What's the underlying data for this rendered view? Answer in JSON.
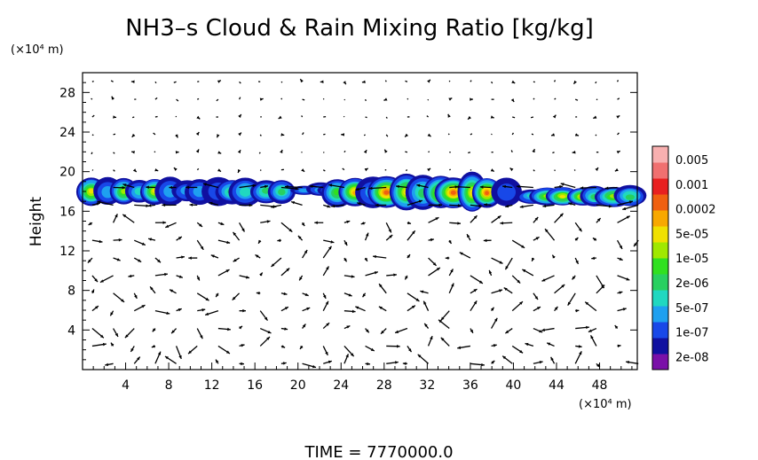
{
  "chart_data": {
    "type": "heatmap",
    "title": "NH3–s Cloud & Rain Mixing Ratio [kg/kg]",
    "y_units": "(×10⁴ m)",
    "x_units": "(×10⁴ m)",
    "ylabel": "Height",
    "xlabel": "",
    "footer": "TIME  =  7770000.0",
    "xlim": [
      0,
      51.5
    ],
    "ylim": [
      0,
      30
    ],
    "xticks": [
      4,
      8,
      12,
      16,
      20,
      24,
      28,
      32,
      36,
      40,
      44,
      48
    ],
    "yticks": [
      4,
      8,
      12,
      16,
      20,
      24,
      28
    ],
    "grid": false,
    "colorbar": {
      "labels": [
        "0.005",
        "0.001",
        "0.0002",
        "5e-05",
        "1e-05",
        "2e-06",
        "5e-07",
        "1e-07",
        "2e-08"
      ],
      "colors": [
        "#7a10a8",
        "#1010a0",
        "#1848e8",
        "#1ea0f0",
        "#20d8c0",
        "#28d060",
        "#30e020",
        "#a0e800",
        "#f0e000",
        "#f8a800",
        "#f06010",
        "#e82020",
        "#f07070",
        "#f8b0b0"
      ]
    },
    "cloud_layers": [
      {
        "name": "layer-west",
        "x": [
          0,
          19
        ],
        "y": [
          16.5,
          19.5
        ],
        "peak": "5e-05"
      },
      {
        "name": "layer-mid",
        "x": [
          20,
          25
        ],
        "y": [
          17.5,
          18.8
        ],
        "peak": "1e-05"
      },
      {
        "name": "layer-core",
        "x": [
          23,
          40
        ],
        "y": [
          16,
          19.8
        ],
        "peak": "0.001"
      },
      {
        "name": "layer-east",
        "x": [
          41,
          51.5
        ],
        "y": [
          16.5,
          18.5
        ],
        "peak": "0.0002"
      }
    ]
  }
}
